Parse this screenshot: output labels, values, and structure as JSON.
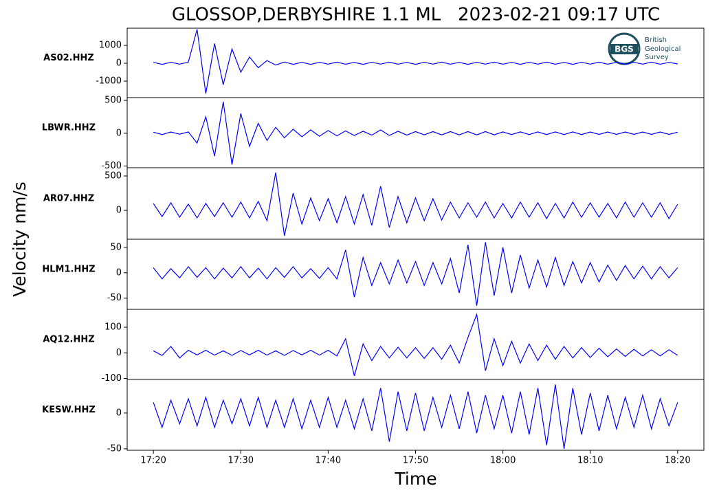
{
  "chart_data": {
    "type": "line",
    "title": "GLOSSOP,DERBYSHIRE 1.1 ML   2023-02-21 09:17 UTC",
    "x_label": "Time",
    "y_label": "Velocity nm/s",
    "x": [
      1040,
      1041,
      1042,
      1043,
      1044,
      1045,
      1046,
      1047,
      1048,
      1049,
      1050,
      1051,
      1052,
      1053,
      1054,
      1055,
      1056,
      1057,
      1058,
      1059,
      1060,
      1061,
      1062,
      1063,
      1064,
      1065,
      1066,
      1067,
      1068,
      1069,
      1070,
      1071,
      1072,
      1073,
      1074,
      1075,
      1076,
      1077,
      1078,
      1079,
      1080,
      1081,
      1082,
      1083,
      1084,
      1085,
      1086,
      1087,
      1088,
      1089,
      1090,
      1091,
      1092,
      1093,
      1094,
      1095,
      1096,
      1097,
      1098,
      1099,
      1100
    ],
    "xlim": [
      1037,
      1103
    ],
    "xticks": [
      {
        "value": 1040,
        "label": "17:20"
      },
      {
        "value": 1050,
        "label": "17:30"
      },
      {
        "value": 1060,
        "label": "17:40"
      },
      {
        "value": 1070,
        "label": "17:50"
      },
      {
        "value": 1080,
        "label": "18:00"
      },
      {
        "value": 1090,
        "label": "18:10"
      },
      {
        "value": 1100,
        "label": "18:20"
      }
    ],
    "series": [
      {
        "name": "AS02.HHZ",
        "color": "#0000ff",
        "ylim": [
          -1923,
          1962
        ],
        "yticks": [
          -1000,
          0,
          1000
        ],
        "values": [
          50,
          -60,
          55,
          -50,
          60,
          1900,
          -1700,
          1100,
          -1200,
          800,
          -500,
          350,
          -250,
          150,
          -100,
          70,
          -60,
          50,
          -60,
          55,
          -50,
          60,
          -55,
          50,
          -60,
          55,
          -50,
          60,
          -55,
          50,
          -60,
          55,
          -50,
          60,
          -55,
          50,
          -60,
          55,
          -50,
          60,
          -55,
          50,
          -60,
          55,
          -50,
          60,
          -55,
          50,
          -60,
          55,
          -50,
          60,
          -55,
          50,
          -60,
          55,
          -50,
          60,
          -55,
          50,
          -40
        ]
      },
      {
        "name": "LBWR.HHZ",
        "color": "#0000ff",
        "ylim": [
          -526,
          542
        ],
        "yticks": [
          -500,
          0,
          500
        ],
        "values": [
          15,
          -20,
          18,
          -15,
          20,
          -150,
          250,
          -350,
          480,
          -480,
          300,
          -200,
          150,
          -110,
          90,
          -70,
          60,
          -55,
          50,
          -45,
          40,
          -40,
          35,
          -35,
          30,
          -30,
          50,
          -35,
          30,
          -30,
          25,
          -25,
          25,
          -25,
          25,
          -25,
          25,
          -25,
          25,
          -25,
          20,
          -20,
          20,
          -20,
          20,
          -20,
          20,
          -20,
          20,
          -20,
          18,
          -18,
          18,
          -18,
          18,
          -18,
          18,
          -18,
          18,
          -18,
          15
        ]
      },
      {
        "name": "AR07.HHZ",
        "color": "#0000ff",
        "ylim": [
          -420,
          620
        ],
        "yticks": [
          0,
          500
        ],
        "values": [
          100,
          -90,
          110,
          -100,
          90,
          -110,
          100,
          -90,
          110,
          -100,
          120,
          -110,
          130,
          -150,
          550,
          -370,
          250,
          -200,
          180,
          -150,
          170,
          -180,
          200,
          -200,
          230,
          -220,
          350,
          -250,
          200,
          -180,
          180,
          -150,
          170,
          -140,
          120,
          -110,
          110,
          -100,
          120,
          -110,
          100,
          -110,
          120,
          -100,
          110,
          -120,
          100,
          -110,
          120,
          -100,
          110,
          -100,
          100,
          -110,
          120,
          -100,
          110,
          -100,
          110,
          -120,
          90
        ]
      },
      {
        "name": "HLM1.HHZ",
        "color": "#0000ff",
        "ylim": [
          -72,
          66
        ],
        "yticks": [
          -50,
          0,
          50
        ],
        "values": [
          10,
          -12,
          8,
          -10,
          12,
          -9,
          10,
          -12,
          9,
          -10,
          12,
          -10,
          9,
          -12,
          10,
          -9,
          12,
          -10,
          8,
          -11,
          10,
          -12,
          45,
          -48,
          30,
          -25,
          20,
          -22,
          25,
          -20,
          22,
          -25,
          20,
          -22,
          28,
          -40,
          55,
          -65,
          60,
          -45,
          50,
          -40,
          35,
          -30,
          25,
          -28,
          30,
          -25,
          22,
          -20,
          20,
          -18,
          15,
          -15,
          14,
          -12,
          13,
          -12,
          12,
          -10,
          10
        ]
      },
      {
        "name": "AQ12.HHZ",
        "color": "#0000ff",
        "ylim": [
          -104,
          170
        ],
        "yticks": [
          -100,
          0,
          100
        ],
        "values": [
          8,
          -10,
          25,
          -20,
          10,
          -8,
          10,
          -9,
          8,
          -10,
          9,
          -8,
          10,
          -9,
          8,
          -10,
          9,
          -8,
          10,
          -9,
          10,
          -12,
          55,
          -90,
          35,
          -30,
          25,
          -20,
          22,
          -20,
          20,
          -22,
          20,
          -25,
          30,
          -40,
          60,
          150,
          -70,
          55,
          -50,
          45,
          -40,
          35,
          -30,
          30,
          -25,
          25,
          -20,
          20,
          -18,
          18,
          -15,
          15,
          -14,
          14,
          -12,
          12,
          -12,
          12,
          -10
        ]
      },
      {
        "name": "KESW.HHZ",
        "color": "#0000ff",
        "ylim": [
          -52,
          47
        ],
        "yticks": [
          -50,
          0
        ],
        "values": [
          15,
          -20,
          18,
          -15,
          20,
          -18,
          22,
          -20,
          18,
          -15,
          20,
          -18,
          22,
          -20,
          18,
          -20,
          20,
          -22,
          18,
          -20,
          22,
          -20,
          18,
          -22,
          20,
          -25,
          35,
          -40,
          30,
          -25,
          28,
          -25,
          22,
          -20,
          25,
          -22,
          30,
          -28,
          25,
          -22,
          25,
          -28,
          30,
          -30,
          35,
          -45,
          40,
          -50,
          35,
          -30,
          28,
          -25,
          25,
          -22,
          22,
          -20,
          25,
          -22,
          20,
          -18,
          15
        ]
      }
    ]
  },
  "logo": {
    "mark": "BGS",
    "lines": [
      "British",
      "Geological",
      "Survey"
    ]
  }
}
